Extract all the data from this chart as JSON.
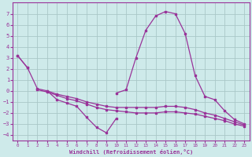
{
  "xlabel": "Windchill (Refroidissement éolien,°C)",
  "bg_color": "#ceeaea",
  "grid_color": "#aac8c8",
  "line_color": "#993399",
  "xlim": [
    -0.5,
    23.5
  ],
  "ylim": [
    -4.5,
    8.0
  ],
  "yticks": [
    -4,
    -3,
    -2,
    -1,
    0,
    1,
    2,
    3,
    4,
    5,
    6,
    7
  ],
  "xticks": [
    0,
    1,
    2,
    3,
    4,
    5,
    6,
    7,
    8,
    9,
    10,
    11,
    12,
    13,
    14,
    15,
    16,
    17,
    18,
    19,
    20,
    21,
    22,
    23
  ],
  "series": [
    {
      "comment": "top-left short line: 0->3.2, 1->2.1",
      "x": [
        0,
        1
      ],
      "y": [
        3.2,
        2.1
      ]
    },
    {
      "comment": "descending curve from x=3 down to x=9 dipping to -3.8",
      "x": [
        3,
        4,
        5,
        6,
        7,
        8,
        9,
        10
      ],
      "y": [
        0.0,
        -0.8,
        -1.1,
        -1.4,
        -2.4,
        -3.3,
        -3.8,
        -2.5
      ]
    },
    {
      "comment": "big peak: rises from x=10 to x=15, then drops to x=23",
      "x": [
        10,
        11,
        12,
        13,
        14,
        15,
        16,
        17,
        18,
        19,
        20,
        21,
        22,
        23
      ],
      "y": [
        -0.2,
        0.1,
        3.0,
        5.5,
        6.8,
        7.2,
        7.0,
        5.2,
        1.4,
        -0.5,
        -0.8,
        -1.8,
        -2.6,
        -3.0
      ]
    },
    {
      "comment": "nearly flat lower line across full range",
      "x": [
        0,
        1,
        2,
        3,
        4,
        5,
        6,
        7,
        8,
        9,
        10,
        11,
        12,
        13,
        14,
        15,
        16,
        17,
        18,
        19,
        20,
        21,
        22,
        23
      ],
      "y": [
        3.2,
        2.1,
        0.2,
        0.0,
        -0.3,
        -0.5,
        -0.7,
        -1.0,
        -1.2,
        -1.4,
        -1.5,
        -1.5,
        -1.5,
        -1.5,
        -1.5,
        -1.4,
        -1.4,
        -1.5,
        -1.7,
        -2.0,
        -2.2,
        -2.5,
        -2.8,
        -3.1
      ]
    },
    {
      "comment": "another flat line slightly below",
      "x": [
        2,
        3,
        4,
        5,
        6,
        7,
        8,
        9,
        10,
        11,
        12,
        13,
        14,
        15,
        16,
        17,
        18,
        19,
        20,
        21,
        22,
        23
      ],
      "y": [
        0.1,
        -0.1,
        -0.4,
        -0.7,
        -0.9,
        -1.2,
        -1.5,
        -1.7,
        -1.8,
        -1.9,
        -2.0,
        -2.0,
        -2.0,
        -1.9,
        -1.9,
        -2.0,
        -2.1,
        -2.3,
        -2.5,
        -2.7,
        -3.0,
        -3.2
      ]
    }
  ]
}
